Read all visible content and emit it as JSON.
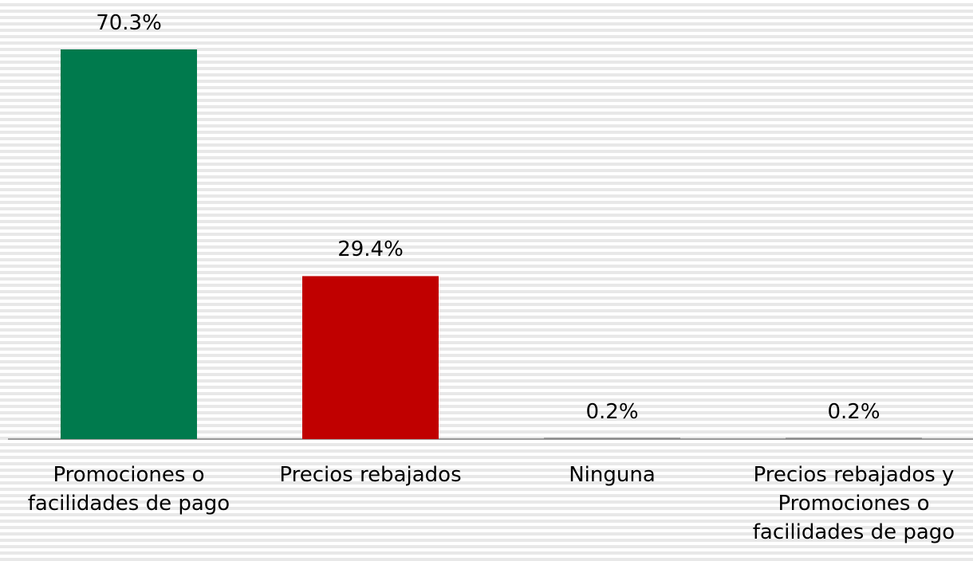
{
  "chart_data": {
    "type": "bar",
    "categories": [
      "Promociones o facilidades de pago",
      "Precios rebajados",
      "Ninguna",
      "Precios rebajados y Promociones o facilidades de pago"
    ],
    "values": [
      70.3,
      29.4,
      0.2,
      0.2
    ],
    "value_labels": [
      "70.3%",
      "29.4%",
      "0.2%",
      "0.2%"
    ],
    "colors": [
      "#007a4d",
      "#c00000",
      "#7f7f7f",
      "#7f7f7f"
    ]
  }
}
